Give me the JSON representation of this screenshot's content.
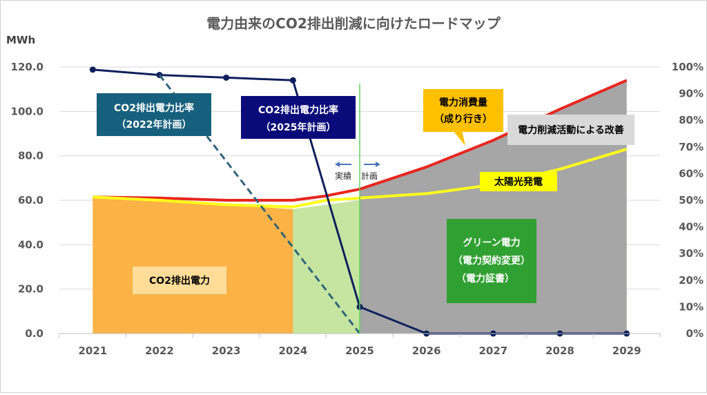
{
  "chart_data": {
    "type": "area",
    "title": "電力由来のCO2排出削減に向けたロードマップ",
    "y_unit_label": "MWh",
    "categories": [
      "2021",
      "2022",
      "2023",
      "2024",
      "2025",
      "2026",
      "2027",
      "2028",
      "2029"
    ],
    "y_left": {
      "min": 0,
      "max": 120,
      "ticks": [
        "0.0",
        "20.0",
        "40.0",
        "60.0",
        "80.0",
        "100.0",
        "120.0"
      ]
    },
    "y_right": {
      "min": 0,
      "max": 100,
      "ticks": [
        "0%",
        "10%",
        "20%",
        "30%",
        "40%",
        "50%",
        "60%",
        "70%",
        "80%",
        "90%",
        "100%"
      ]
    },
    "areas": [
      {
        "name": "CO2排出電力",
        "color": "#fbb246",
        "x": [
          0,
          1,
          2,
          3,
          4,
          5
        ],
        "values": [
          61.5,
          60,
          58,
          56,
          6,
          0
        ]
      },
      {
        "name": "グリーン電力",
        "color": "#c6e5a0",
        "x": [
          3,
          4,
          5,
          6,
          7,
          8
        ],
        "values": [
          56,
          60,
          62,
          66,
          73,
          82
        ]
      },
      {
        "name": "電力削減活動による改善",
        "color": "#a6a6a6",
        "x": [
          4,
          5,
          6,
          7,
          8
        ],
        "values": [
          65,
          75,
          87,
          101,
          114
        ]
      }
    ],
    "lines": [
      {
        "name": "電力消費量（成り行き）",
        "color": "#e8251d",
        "x": [
          0,
          1,
          2,
          3,
          3.5,
          4,
          5,
          6,
          7,
          8
        ],
        "values": [
          61.5,
          61,
          60,
          60,
          62,
          65,
          75,
          87,
          101,
          114
        ]
      },
      {
        "name": "太陽光発電",
        "color": "#ffff1a",
        "x": [
          0,
          1,
          2,
          3,
          3.5,
          4,
          5,
          6,
          7,
          8
        ],
        "values": [
          61.5,
          60,
          58,
          57,
          60,
          61,
          63,
          67,
          74,
          83
        ]
      },
      {
        "name": "CO2排出電力比率（2025年計画）",
        "color": "#0d1f5c",
        "axis": "right",
        "x": [
          0,
          1,
          2,
          3,
          4,
          5,
          6,
          7,
          8
        ],
        "values": [
          99,
          97,
          96,
          95,
          10,
          0,
          0,
          0,
          0
        ]
      },
      {
        "name": "CO2排出電力比率（2022年計画）",
        "color": "#2e6479",
        "axis": "right",
        "dashed": true,
        "x": [
          1,
          4
        ],
        "values": [
          97,
          0
        ]
      }
    ],
    "divider_x": 4,
    "divider_labels": {
      "left": "実績",
      "right": "計画"
    },
    "annotations": {
      "plan2022": {
        "line1": "CO2排出電力比率",
        "line2": "（2022年計画）",
        "color": "#17607d"
      },
      "plan2025": {
        "line1": "CO2排出電力比率",
        "line2": "（2025年計画）",
        "color": "#0a0a7a"
      },
      "consumption": {
        "line1": "電力消費量",
        "line2": "（成り行き）",
        "color": "#ffc000"
      },
      "reduction": {
        "text": "電力削減活動による改善",
        "color": "#d9d9d9"
      },
      "solar": {
        "text": "太陽光発電",
        "color": "#ffff00"
      },
      "co2": {
        "text": "CO2排出電力",
        "color": "#ffdd99"
      },
      "green": {
        "line1": "グリーン電力",
        "line2": "（電力契約変更）",
        "line3": "（電力証書）",
        "color": "#31a032"
      }
    },
    "grid": true
  }
}
